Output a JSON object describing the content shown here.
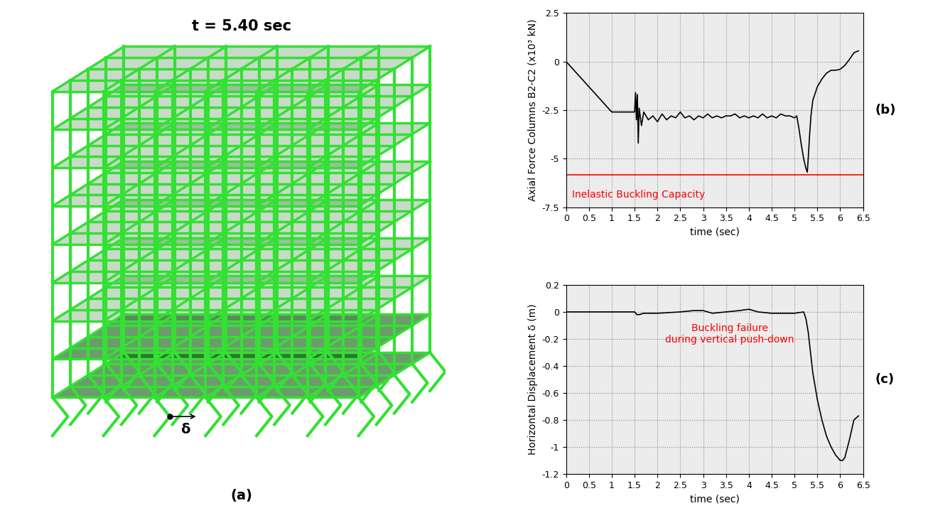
{
  "diagram": {
    "title": "t = 5.40 sec",
    "displacement_label": "δ",
    "panel_label": "(a)"
  },
  "chart_data": [
    {
      "type": "line",
      "panel_label": "(b)",
      "x_label": "time (sec)",
      "y_label": "Axial Force Columns B2-C2 (x10³ kN)",
      "xlim": [
        0,
        6.5
      ],
      "xticks": [
        0,
        0.5,
        1,
        1.5,
        2,
        2.5,
        3,
        3.5,
        4,
        4.5,
        5,
        5.5,
        6,
        6.5
      ],
      "ylim": [
        -7.5,
        2.5
      ],
      "yticks": [
        -7.5,
        -5,
        -2.5,
        0,
        2.5
      ],
      "grid": true,
      "reference_lines": [
        {
          "value": -5.85,
          "label": "Inelastic Buckling Capacity",
          "color": "#ff0000"
        }
      ],
      "series": [
        {
          "color": "#000000",
          "x": [
            0,
            1,
            1.5,
            1.52,
            1.54,
            1.56,
            1.58,
            1.6,
            1.65,
            1.7,
            1.8,
            1.9,
            2.0,
            2.1,
            2.2,
            2.3,
            2.4,
            2.5,
            2.6,
            2.7,
            2.8,
            2.9,
            3.0,
            3.1,
            3.2,
            3.3,
            3.4,
            3.5,
            3.6,
            3.7,
            3.8,
            3.9,
            4.0,
            4.1,
            4.2,
            4.3,
            4.4,
            4.5,
            4.6,
            4.7,
            4.8,
            4.9,
            5.0,
            5.05,
            5.1,
            5.15,
            5.2,
            5.25,
            5.28,
            5.3,
            5.33,
            5.36,
            5.4,
            5.5,
            5.6,
            5.7,
            5.8,
            5.9,
            6.0,
            6.1,
            6.2,
            6.3,
            6.4
          ],
          "values": [
            0,
            -2.6,
            -2.6,
            -1.6,
            -3.0,
            -1.7,
            -4.2,
            -2.4,
            -3.3,
            -2.6,
            -3.0,
            -2.8,
            -3.1,
            -2.7,
            -3.0,
            -2.8,
            -2.9,
            -2.6,
            -2.9,
            -2.8,
            -3.0,
            -2.8,
            -2.9,
            -2.7,
            -2.9,
            -2.8,
            -2.9,
            -2.8,
            -2.8,
            -2.7,
            -2.9,
            -2.8,
            -2.9,
            -2.8,
            -2.9,
            -2.7,
            -2.9,
            -2.8,
            -2.9,
            -2.7,
            -2.8,
            -2.8,
            -2.9,
            -2.8,
            -3.5,
            -4.3,
            -5.0,
            -5.5,
            -5.7,
            -5.0,
            -3.8,
            -2.8,
            -2.0,
            -1.3,
            -0.9,
            -0.6,
            -0.45,
            -0.45,
            -0.4,
            -0.2,
            0.1,
            0.45,
            0.55
          ]
        }
      ]
    },
    {
      "type": "line",
      "panel_label": "(c)",
      "x_label": "time (sec)",
      "y_label": "Horizontal Displacement δ (m)",
      "xlim": [
        0,
        6.5
      ],
      "xticks": [
        0,
        0.5,
        1,
        1.5,
        2,
        2.5,
        3,
        3.5,
        4,
        4.5,
        5,
        5.5,
        6,
        6.5
      ],
      "ylim": [
        -1.2,
        0.2
      ],
      "yticks": [
        -1.2,
        -1,
        -0.8,
        -0.6,
        -0.4,
        -0.2,
        0,
        0.2
      ],
      "grid": true,
      "annotations": [
        {
          "text": "Buckling failure\nduring vertical push-down",
          "color": "#ff0000"
        }
      ],
      "series": [
        {
          "color": "#000000",
          "x": [
            0,
            1.5,
            1.55,
            1.6,
            1.7,
            2.0,
            2.5,
            2.8,
            3.0,
            3.2,
            3.5,
            3.8,
            4.0,
            4.2,
            4.5,
            5.0,
            5.2,
            5.25,
            5.3,
            5.35,
            5.4,
            5.5,
            5.6,
            5.7,
            5.8,
            5.9,
            6.0,
            6.05,
            6.1,
            6.2,
            6.3,
            6.4
          ],
          "values": [
            0,
            0,
            -0.02,
            -0.02,
            -0.01,
            -0.01,
            0,
            0.01,
            0.01,
            -0.01,
            0,
            0.01,
            0.02,
            0,
            -0.01,
            -0.01,
            0,
            -0.05,
            -0.15,
            -0.3,
            -0.45,
            -0.65,
            -0.8,
            -0.92,
            -1.0,
            -1.06,
            -1.1,
            -1.1,
            -1.08,
            -0.95,
            -0.8,
            -0.77
          ]
        }
      ]
    }
  ]
}
